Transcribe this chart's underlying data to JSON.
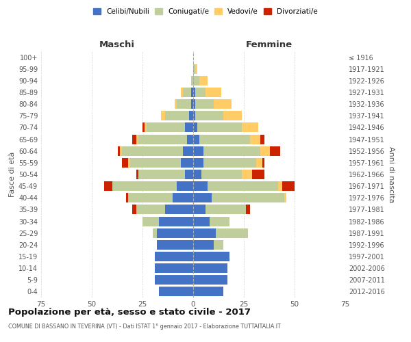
{
  "age_groups": [
    "0-4",
    "5-9",
    "10-14",
    "15-19",
    "20-24",
    "25-29",
    "30-34",
    "35-39",
    "40-44",
    "45-49",
    "50-54",
    "55-59",
    "60-64",
    "65-69",
    "70-74",
    "75-79",
    "80-84",
    "85-89",
    "90-94",
    "95-99",
    "100+"
  ],
  "birth_years": [
    "2012-2016",
    "2007-2011",
    "2002-2006",
    "1997-2001",
    "1992-1996",
    "1987-1991",
    "1982-1986",
    "1977-1981",
    "1972-1976",
    "1967-1971",
    "1962-1966",
    "1957-1961",
    "1952-1956",
    "1947-1951",
    "1942-1946",
    "1937-1941",
    "1932-1936",
    "1927-1931",
    "1922-1926",
    "1917-1921",
    "≤ 1916"
  ],
  "colors": {
    "celibe": "#4472C4",
    "coniugato": "#BFCE9A",
    "vedovo": "#FFCC66",
    "divorziato": "#CC2200"
  },
  "maschi": {
    "celibe": [
      17,
      19,
      19,
      19,
      18,
      18,
      17,
      14,
      10,
      8,
      4,
      6,
      5,
      3,
      4,
      2,
      1,
      1,
      0,
      0,
      0
    ],
    "coniugato": [
      0,
      0,
      0,
      0,
      0,
      2,
      8,
      14,
      22,
      32,
      23,
      25,
      30,
      24,
      19,
      12,
      7,
      4,
      1,
      0,
      0
    ],
    "vedovo": [
      0,
      0,
      0,
      0,
      0,
      0,
      0,
      0,
      0,
      0,
      0,
      1,
      1,
      1,
      1,
      2,
      1,
      1,
      0,
      0,
      0
    ],
    "divorziato": [
      0,
      0,
      0,
      0,
      0,
      0,
      0,
      2,
      1,
      4,
      1,
      3,
      1,
      2,
      1,
      0,
      0,
      0,
      0,
      0,
      0
    ]
  },
  "femmine": {
    "celibe": [
      15,
      17,
      17,
      18,
      10,
      11,
      8,
      6,
      9,
      7,
      4,
      5,
      5,
      3,
      2,
      1,
      1,
      1,
      0,
      0,
      0
    ],
    "coniugato": [
      0,
      0,
      0,
      0,
      5,
      16,
      10,
      20,
      36,
      35,
      20,
      26,
      28,
      25,
      22,
      14,
      9,
      5,
      3,
      1,
      0
    ],
    "vedovo": [
      0,
      0,
      0,
      0,
      0,
      0,
      0,
      0,
      1,
      2,
      5,
      3,
      5,
      5,
      8,
      9,
      9,
      8,
      4,
      1,
      0
    ],
    "divorziato": [
      0,
      0,
      0,
      0,
      0,
      0,
      0,
      2,
      0,
      6,
      6,
      1,
      5,
      2,
      0,
      0,
      0,
      0,
      0,
      0,
      0
    ]
  },
  "xlim": 75,
  "title": "Popolazione per età, sesso e stato civile - 2017",
  "subtitle": "COMUNE DI BASSANO IN TEVERINA (VT) - Dati ISTAT 1° gennaio 2017 - Elaborazione TUTTAITALIA.IT",
  "ylabel_left": "Fasce di età",
  "ylabel_right": "Anni di nascita",
  "xlabel_maschi": "Maschi",
  "xlabel_femmine": "Femmine",
  "legend_labels": [
    "Celibi/Nubili",
    "Coniugati/e",
    "Vedovi/e",
    "Divorziati/e"
  ],
  "bg_color": "#FFFFFF",
  "grid_color": "#CCCCCC"
}
